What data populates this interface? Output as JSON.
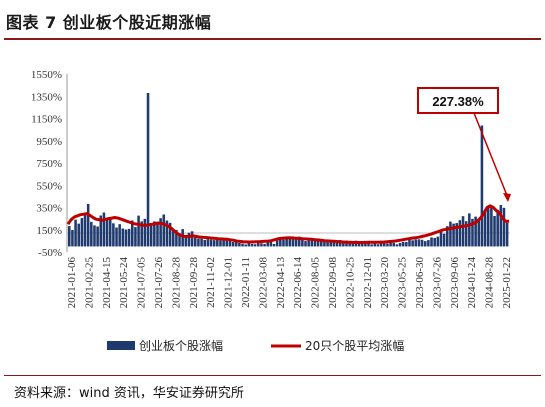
{
  "figure_title": "图表 7 创业板个股近期涨幅",
  "source": "资料来源：wind 资讯，华安证券研究所",
  "colors": {
    "bar": "#1f3a6e",
    "line": "#c00000",
    "rule": "#8b1a1a",
    "callout_border": "#c00000"
  },
  "chart_data": {
    "type": "bar",
    "title": "",
    "xlabel": "",
    "ylabel": "",
    "ylim": [
      -50,
      1550
    ],
    "y_ticks": [
      "-50%",
      "150%",
      "350%",
      "550%",
      "750%",
      "950%",
      "1150%",
      "1350%",
      "1550%"
    ],
    "x_ticks": [
      "2021-01-06",
      "2021-02-25",
      "2021-04-15",
      "2021-05-24",
      "2021-07-05",
      "2021-07-26",
      "2021-08-28",
      "2021-09-28",
      "2021-11-02",
      "2021-12-01",
      "2022-01-11",
      "2022-03-08",
      "2022-04-13",
      "2022-06-14",
      "2022-08-05",
      "2022-09-08",
      "2022-10-25",
      "2022-12-01",
      "2023-03-20",
      "2023-05-25",
      "2023-06-30",
      "2023-07-26",
      "2023-09-06",
      "2024-01-24",
      "2024-08-28",
      "2025-01-22"
    ],
    "series": [
      {
        "name": "创业板个股涨幅",
        "type": "bar",
        "values": [
          183,
          148,
          241,
          205,
          255,
          304,
          382,
          221,
          189,
          179,
          278,
          305,
          246,
          256,
          208,
          170,
          200,
          161,
          152,
          158,
          233,
          174,
          277,
          225,
          248,
          1379,
          192,
          225,
          223,
          254,
          287,
          233,
          212,
          144,
          148,
          117,
          156,
          99,
          123,
          136,
          95,
          70,
          70,
          58,
          66,
          61,
          57,
          76,
          56,
          59,
          57,
          53,
          40,
          55,
          31,
          25,
          18,
          45,
          23,
          20,
          51,
          28,
          22,
          37,
          44,
          23,
          61,
          70,
          61,
          84,
          80,
          90,
          62,
          88,
          75,
          48,
          53,
          59,
          68,
          72,
          67,
          46,
          39,
          56,
          54,
          53,
          57,
          44,
          53,
          36,
          39,
          52,
          31,
          22,
          38,
          33,
          19,
          32,
          20,
          38,
          41,
          26,
          38,
          32,
          19,
          32,
          41,
          40,
          69,
          55,
          63,
          64,
          60,
          48,
          57,
          81,
          77,
          88,
          137,
          114,
          182,
          223,
          205,
          210,
          236,
          272,
          227,
          297,
          248,
          268,
          251,
          1087,
          320,
          351,
          349,
          274,
          330,
          372,
          347,
          211
        ]
      },
      {
        "name": "20只个股平均涨幅",
        "type": "line",
        "values": [
          200,
          240,
          265,
          275,
          285,
          290,
          295,
          280,
          260,
          245,
          240,
          235,
          245,
          250,
          255,
          260,
          255,
          245,
          235,
          225,
          215,
          205,
          200,
          195,
          190,
          190,
          195,
          200,
          205,
          210,
          205,
          195,
          185,
          165,
          140,
          115,
          100,
          92,
          90,
          92,
          95,
          90,
          85,
          82,
          80,
          78,
          75,
          72,
          70,
          68,
          66,
          64,
          60,
          55,
          48,
          45,
          42,
          41,
          40,
          41,
          42,
          43,
          44,
          46,
          48,
          52,
          60,
          68,
          72,
          75,
          77,
          78,
          76,
          74,
          72,
          70,
          68,
          66,
          64,
          60,
          58,
          55,
          52,
          50,
          48,
          46,
          44,
          42,
          40,
          38,
          37,
          36,
          35,
          35,
          35,
          36,
          37,
          38,
          38,
          38,
          39,
          40,
          42,
          44,
          47,
          50,
          55,
          60,
          65,
          70,
          75,
          78,
          82,
          88,
          95,
          102,
          110,
          120,
          130,
          140,
          150,
          155,
          160,
          165,
          170,
          175,
          180,
          185,
          190,
          200,
          210,
          230,
          260,
          300,
          350,
          365,
          350,
          320,
          300,
          250,
          225,
          227
        ]
      }
    ],
    "annotation": "227.38%",
    "legend_position": "bottom",
    "grid": false
  }
}
